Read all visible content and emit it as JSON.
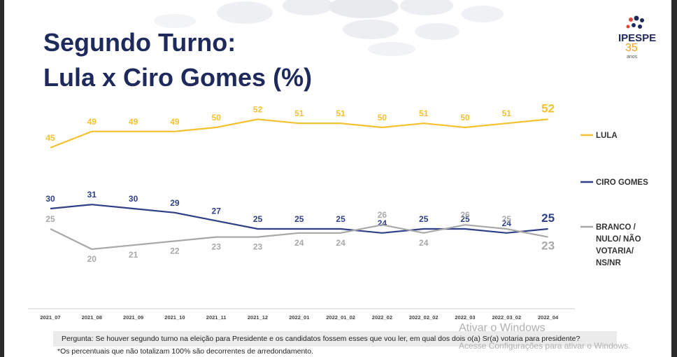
{
  "title": {
    "line1": "Segundo Turno:",
    "line2": "Lula x Ciro Gomes (%)"
  },
  "logo": {
    "name": "IPESPE",
    "number": "35",
    "sub": "anos"
  },
  "colors": {
    "lula": "#f5c12e",
    "ciro": "#2f3f88",
    "branco": "#a8a8a8",
    "title": "#1f2a5c"
  },
  "chart_data": {
    "type": "line",
    "x": [
      "2021_07",
      "2021_08",
      "2021_09",
      "2021_10",
      "2021_11",
      "2021_12",
      "2022_01",
      "2022_01_02",
      "2022_02",
      "2022_02_02",
      "2022_03",
      "2022_03_02",
      "2022_04"
    ],
    "series": [
      {
        "name": "LULA",
        "values": [
          45,
          49,
          49,
          49,
          50,
          52,
          51,
          51,
          50,
          51,
          50,
          51,
          52
        ]
      },
      {
        "name": "CIRO GOMES",
        "values": [
          30,
          31,
          30,
          29,
          27,
          25,
          25,
          25,
          24,
          25,
          25,
          24,
          25
        ]
      },
      {
        "name": "BRANCO / NULO/ NÃO VOTARIA/ NS/NR",
        "values": [
          25,
          20,
          21,
          22,
          23,
          23,
          24,
          24,
          26,
          24,
          26,
          25,
          23
        ]
      }
    ],
    "legend_lines": [
      [
        "LULA"
      ],
      [
        "CIRO GOMES"
      ],
      [
        "BRANCO /",
        "NULO/ NÃO",
        "VOTARIA/",
        "NS/NR"
      ]
    ],
    "legend_position": "right",
    "grid": false
  },
  "footer": {
    "question": "Pergunta:  Se houver segundo turno na eleição para Presidente e os candidatos fossem esses que vou ler, em qual dos dois o(a) Sr(a) votaria para presidente?",
    "note": "*Os percentuais que não totalizam 100% são decorrentes de arredondamento."
  },
  "watermark": {
    "line1": "Ativar o Windows",
    "line2": "Acesse Configurações para ativar o Windows."
  }
}
